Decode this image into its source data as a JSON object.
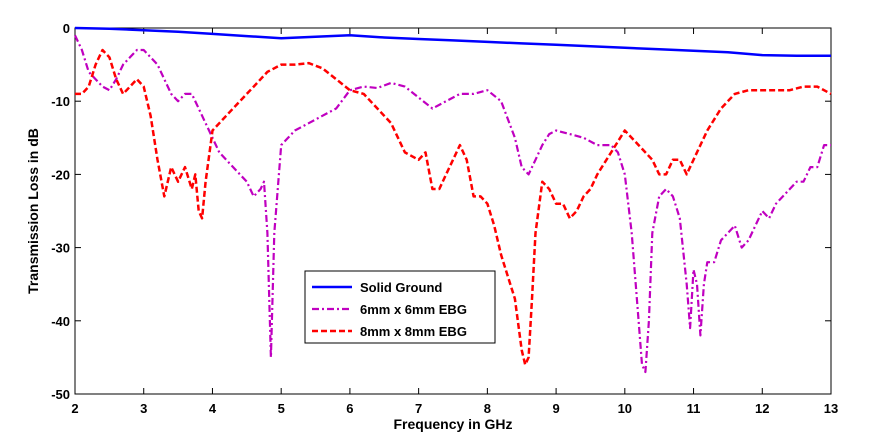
{
  "chart_data": {
    "type": "line",
    "title": "",
    "xlabel": "Frequency in GHz",
    "ylabel": "Transmission Loss in dB",
    "xlim": [
      2,
      13
    ],
    "ylim": [
      -50,
      0
    ],
    "xticks": [
      "2",
      "3",
      "4",
      "5",
      "6",
      "7",
      "8",
      "9",
      "10",
      "11",
      "12",
      "13"
    ],
    "yticks": [
      "0",
      "-10",
      "-20",
      "-30",
      "-40",
      "-50"
    ],
    "grid": false,
    "legend": {
      "position": "center-bottom"
    },
    "series": [
      {
        "name": "Solid Ground",
        "color": "#0000ff",
        "dash": "solid",
        "x": [
          2,
          2.5,
          3,
          3.5,
          4,
          4.5,
          5,
          5.5,
          6,
          6.5,
          7,
          7.5,
          8,
          8.5,
          9,
          9.5,
          10,
          10.5,
          11,
          11.5,
          12,
          12.5,
          13
        ],
        "y": [
          0,
          -0.1,
          -0.3,
          -0.5,
          -0.8,
          -1.1,
          -1.4,
          -1.2,
          -1.0,
          -1.3,
          -1.5,
          -1.7,
          -1.9,
          -2.1,
          -2.3,
          -2.5,
          -2.7,
          -2.9,
          -3.1,
          -3.3,
          -3.7,
          -3.8,
          -3.8
        ]
      },
      {
        "name": "6mm x 6mm EBG",
        "color": "#c000c0",
        "dash": "dashdot",
        "x": [
          2,
          2.1,
          2.2,
          2.3,
          2.4,
          2.5,
          2.6,
          2.7,
          2.8,
          2.9,
          3.0,
          3.1,
          3.2,
          3.3,
          3.4,
          3.5,
          3.6,
          3.7,
          3.8,
          3.9,
          4.0,
          4.1,
          4.2,
          4.3,
          4.4,
          4.5,
          4.6,
          4.7,
          4.75,
          4.8,
          4.85,
          4.9,
          5.0,
          5.1,
          5.2,
          5.4,
          5.6,
          5.8,
          6.0,
          6.2,
          6.4,
          6.6,
          6.8,
          7.0,
          7.2,
          7.4,
          7.6,
          7.8,
          8.0,
          8.2,
          8.4,
          8.5,
          8.6,
          8.7,
          8.8,
          8.9,
          9.0,
          9.2,
          9.4,
          9.6,
          9.8,
          9.9,
          10.0,
          10.1,
          10.2,
          10.25,
          10.3,
          10.35,
          10.4,
          10.5,
          10.6,
          10.7,
          10.8,
          10.9,
          10.95,
          11.0,
          11.05,
          11.1,
          11.15,
          11.2,
          11.3,
          11.4,
          11.5,
          11.6,
          11.7,
          11.8,
          11.9,
          12.0,
          12.1,
          12.2,
          12.3,
          12.4,
          12.5,
          12.6,
          12.7,
          12.8,
          12.9,
          13.0
        ],
        "y": [
          -1,
          -3,
          -6,
          -7,
          -8,
          -8.5,
          -7,
          -5,
          -4,
          -3,
          -3,
          -4,
          -5,
          -7,
          -9,
          -10,
          -9,
          -9,
          -11,
          -13,
          -15,
          -17,
          -18,
          -19,
          -20,
          -21,
          -23,
          -22,
          -21,
          -28,
          -45,
          -28,
          -16,
          -15,
          -14,
          -13,
          -12,
          -11,
          -8.5,
          -8,
          -8.2,
          -7.5,
          -8,
          -9.5,
          -11,
          -10,
          -9,
          -9,
          -8.5,
          -10,
          -15,
          -19,
          -20,
          -18,
          -16,
          -14.5,
          -14,
          -14.5,
          -15,
          -16,
          -16,
          -17,
          -20,
          -28,
          -40,
          -46,
          -47,
          -40,
          -28,
          -23,
          -22,
          -23,
          -26,
          -35,
          -41,
          -33,
          -35,
          -42,
          -35,
          -32,
          -32,
          -29,
          -28,
          -27,
          -30,
          -29,
          -27,
          -25,
          -26,
          -24,
          -23,
          -22,
          -21,
          -21,
          -19,
          -19,
          -16,
          -16
        ]
      },
      {
        "name": "8mm x 8mm EBG",
        "color": "#ff0000",
        "dash": "dashed",
        "x": [
          2,
          2.1,
          2.2,
          2.3,
          2.4,
          2.5,
          2.6,
          2.7,
          2.8,
          2.9,
          3.0,
          3.1,
          3.2,
          3.3,
          3.4,
          3.5,
          3.6,
          3.7,
          3.75,
          3.8,
          3.85,
          3.9,
          4.0,
          4.1,
          4.2,
          4.4,
          4.6,
          4.8,
          5.0,
          5.2,
          5.4,
          5.6,
          5.8,
          6.0,
          6.2,
          6.4,
          6.6,
          6.8,
          7.0,
          7.1,
          7.2,
          7.3,
          7.4,
          7.5,
          7.6,
          7.7,
          7.8,
          7.9,
          8.0,
          8.1,
          8.2,
          8.3,
          8.4,
          8.5,
          8.55,
          8.6,
          8.65,
          8.7,
          8.8,
          8.9,
          9.0,
          9.1,
          9.2,
          9.3,
          9.4,
          9.5,
          9.6,
          9.8,
          10.0,
          10.2,
          10.4,
          10.5,
          10.6,
          10.7,
          10.8,
          10.9,
          11.0,
          11.1,
          11.2,
          11.4,
          11.6,
          11.8,
          12.0,
          12.2,
          12.4,
          12.6,
          12.8,
          13.0
        ],
        "y": [
          -9,
          -9,
          -8,
          -5,
          -3,
          -4,
          -7,
          -9,
          -8,
          -7,
          -8,
          -12,
          -18,
          -23,
          -19,
          -21,
          -19,
          -22,
          -20,
          -25,
          -26,
          -21,
          -14,
          -13,
          -12,
          -10,
          -8,
          -6,
          -5,
          -5,
          -4.8,
          -5.5,
          -7,
          -8.5,
          -9,
          -11,
          -13,
          -17,
          -18,
          -17,
          -22,
          -22,
          -20,
          -18,
          -16,
          -18,
          -23,
          -23,
          -24,
          -27,
          -31,
          -34,
          -37,
          -44,
          -46,
          -45,
          -37,
          -28,
          -21,
          -22,
          -24,
          -24,
          -26,
          -25,
          -23,
          -22,
          -20,
          -17,
          -14,
          -16,
          -18,
          -20,
          -20,
          -18,
          -18,
          -20,
          -18,
          -16,
          -14,
          -11,
          -9,
          -8.5,
          -8.5,
          -8.5,
          -8.5,
          -8,
          -8,
          -9
        ]
      }
    ]
  }
}
